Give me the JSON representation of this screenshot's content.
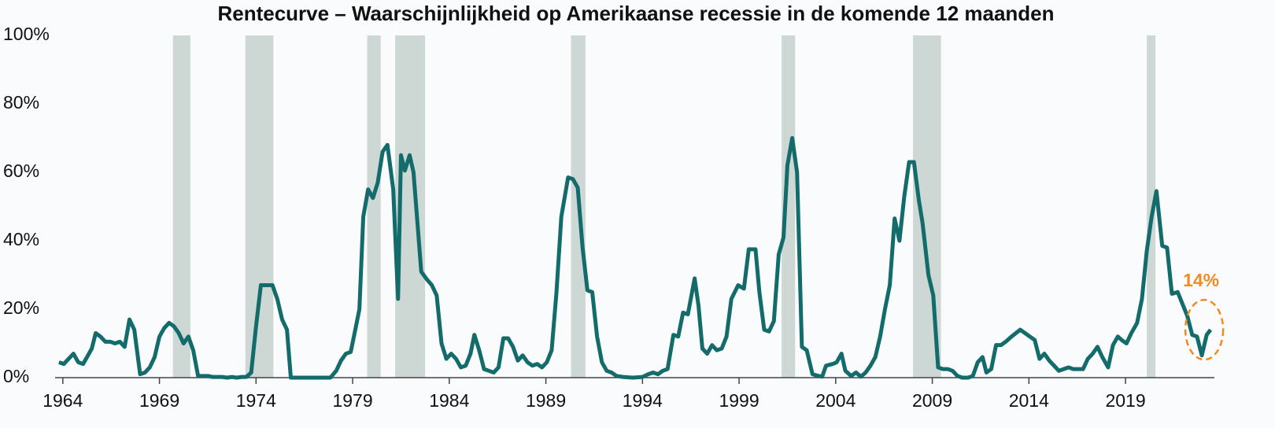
{
  "chart_data": {
    "type": "line",
    "title": "Rentecurve – Waarschijnlijkheid op Amerikaanse recessie  in de komende 12 maanden",
    "color": "#136b6b",
    "recession_color": "#cdd7d4",
    "recessions": [
      [
        1969.7,
        1970.6
      ],
      [
        1973.45,
        1974.9
      ],
      [
        1979.75,
        1980.45
      ],
      [
        1981.2,
        1982.75
      ],
      [
        1990.3,
        1991.05
      ],
      [
        2001.2,
        2001.9
      ],
      [
        2008.0,
        2009.45
      ],
      [
        2020.1,
        2020.55
      ]
    ],
    "x": [
      1963.8,
      1964.05,
      1964.3,
      1964.55,
      1964.8,
      1965.05,
      1965.3,
      1965.5,
      1965.7,
      1965.95,
      1966.2,
      1966.45,
      1966.7,
      1966.95,
      1967.2,
      1967.45,
      1967.7,
      1968.0,
      1968.25,
      1968.5,
      1968.75,
      1969.0,
      1969.25,
      1969.5,
      1969.75,
      1970.0,
      1970.25,
      1970.5,
      1970.75,
      1971.0,
      1971.25,
      1971.5,
      1971.75,
      1972.0,
      1972.25,
      1972.5,
      1972.75,
      1973.0,
      1973.25,
      1973.5,
      1973.75,
      1974.0,
      1974.25,
      1974.55,
      1974.85,
      1975.1,
      1975.35,
      1975.6,
      1975.8,
      1977.85,
      1978.15,
      1978.4,
      1978.65,
      1978.9,
      1979.1,
      1979.35,
      1979.55,
      1979.8,
      1980.05,
      1980.3,
      1980.55,
      1980.8,
      1981.1,
      1981.35,
      1981.5,
      1981.7,
      1981.95,
      1982.15,
      1982.55,
      1982.8,
      1983.1,
      1983.35,
      1983.6,
      1983.85,
      1984.1,
      1984.35,
      1984.6,
      1984.85,
      1985.1,
      1985.3,
      1985.55,
      1985.8,
      1986.05,
      1986.3,
      1986.55,
      1986.8,
      1987.05,
      1987.3,
      1987.55,
      1987.8,
      1988.05,
      1988.3,
      1988.55,
      1988.8,
      1989.05,
      1989.3,
      1989.55,
      1989.8,
      1990.15,
      1990.4,
      1990.65,
      1990.9,
      1991.15,
      1991.4,
      1991.65,
      1991.9,
      1992.15,
      1992.4,
      1992.65,
      1993.0,
      1993.5,
      1994.0,
      1994.3,
      1994.55,
      1994.8,
      1995.05,
      1995.3,
      1995.6,
      1995.85,
      1996.1,
      1996.35,
      1996.7,
      1996.9,
      1997.1,
      1997.35,
      1997.6,
      1997.85,
      1998.1,
      1998.35,
      1998.6,
      1998.95,
      1999.25,
      1999.5,
      1999.85,
      2000.05,
      2000.3,
      2000.55,
      2000.8,
      2001.05,
      2001.3,
      2001.5,
      2001.75,
      2002.0,
      2002.25,
      2002.5,
      2002.8,
      2003.1,
      2003.3,
      2003.5,
      2003.85,
      2004.05,
      2004.3,
      2004.5,
      2004.8,
      2005.05,
      2005.3,
      2005.55,
      2005.8,
      2006.05,
      2006.3,
      2006.55,
      2006.8,
      2007.05,
      2007.3,
      2007.55,
      2007.8,
      2008.05,
      2008.3,
      2008.5,
      2008.8,
      2009.05,
      2009.3,
      2009.55,
      2009.8,
      2010.05,
      2010.3,
      2010.55,
      2010.85,
      2011.1,
      2011.35,
      2011.6,
      2011.8,
      2012.05,
      2012.3,
      2012.55,
      2012.8,
      2013.1,
      2013.55,
      2013.8,
      2014.05,
      2014.3,
      2014.55,
      2014.8,
      2015.05,
      2015.3,
      2015.55,
      2015.8,
      2016.05,
      2016.3,
      2016.55,
      2016.8,
      2017.05,
      2017.3,
      2017.55,
      2017.8,
      2018.1,
      2018.35,
      2018.6,
      2018.8,
      2019.05,
      2019.3,
      2019.6,
      2019.85,
      2020.1,
      2020.35,
      2020.6,
      2020.9,
      2021.15,
      2021.4,
      2021.7,
      2021.95,
      2022.2,
      2022.45,
      2022.7,
      2022.95,
      2023.2,
      2023.4
    ],
    "values": [
      4.5,
      4,
      5.5,
      7,
      4.5,
      4,
      6.5,
      8.5,
      13,
      12,
      10.5,
      10.5,
      10,
      10.5,
      9,
      17,
      14,
      1,
      1.5,
      3,
      6,
      12,
      14.5,
      16,
      15,
      13,
      10,
      12,
      8,
      0.5,
      0.5,
      0.5,
      0.2,
      0.2,
      0.2,
      0,
      0.2,
      0,
      0.2,
      0.2,
      1.5,
      15,
      27,
      27,
      27,
      23,
      17,
      14,
      0,
      0,
      2,
      5,
      7,
      7.5,
      13,
      20,
      47,
      55,
      52.5,
      57,
      66,
      68,
      55,
      23,
      65,
      60.5,
      65,
      60,
      31,
      29,
      27,
      24,
      10,
      5.5,
      7,
      5.5,
      3,
      3.5,
      7,
      12.5,
      8,
      2.5,
      2,
      1.5,
      3,
      11.5,
      11.5,
      9,
      5,
      6.5,
      4.5,
      3.5,
      4,
      3,
      4.5,
      8,
      25,
      47,
      58.5,
      58,
      55.5,
      38,
      25.5,
      25,
      12,
      4.5,
      2,
      1.5,
      0.5,
      0.2,
      0,
      0.2,
      1,
      1.5,
      1,
      2,
      2.5,
      12.5,
      12,
      19,
      18.5,
      29,
      21,
      8.5,
      7,
      9.5,
      8,
      8.5,
      12,
      23,
      27,
      26,
      37.5,
      37.5,
      25,
      14,
      13.5,
      16.5,
      36,
      41,
      62,
      70,
      60,
      9,
      8,
      1,
      0.5,
      0.3,
      3.5,
      4,
      4.5,
      7,
      2,
      0.5,
      1.5,
      0.3,
      1.5,
      3.5,
      6,
      12,
      20,
      27,
      46.5,
      40,
      53,
      63,
      63,
      52,
      45,
      30,
      24,
      3,
      2.5,
      2.5,
      2,
      0.5,
      0,
      0,
      0.5,
      4.5,
      6,
      1.5,
      2.5,
      9.5,
      9.5,
      10.5,
      12,
      14,
      13,
      12,
      11,
      5.5,
      7,
      5,
      3.5,
      2,
      2.5,
      3,
      2.5,
      2.5,
      2.5,
      5.5,
      7,
      9,
      6,
      3,
      9.5,
      12,
      11,
      10,
      13,
      16,
      23,
      37,
      47,
      54.5,
      38.5,
      38,
      24.5,
      25,
      21.5,
      18,
      12.5,
      12,
      6.5,
      12.5,
      14
    ],
    "xlim": [
      1963.6,
      2023.6
    ],
    "xticks": [
      1964,
      1969,
      1974,
      1979,
      1984,
      1989,
      1994,
      1999,
      2004,
      2009,
      2014,
      2019
    ],
    "ylim": [
      0,
      100
    ],
    "yticks": [
      {
        "value": 0,
        "label": "0%"
      },
      {
        "value": 20,
        "label": "20%"
      },
      {
        "value": 40,
        "label": "40%"
      },
      {
        "value": 60,
        "label": "60%"
      },
      {
        "value": 80,
        "label": "80%"
      },
      {
        "value": 100,
        "label": "100%"
      }
    ],
    "annotation": {
      "label": "14%",
      "value": 14,
      "color": "#f08a24"
    }
  }
}
